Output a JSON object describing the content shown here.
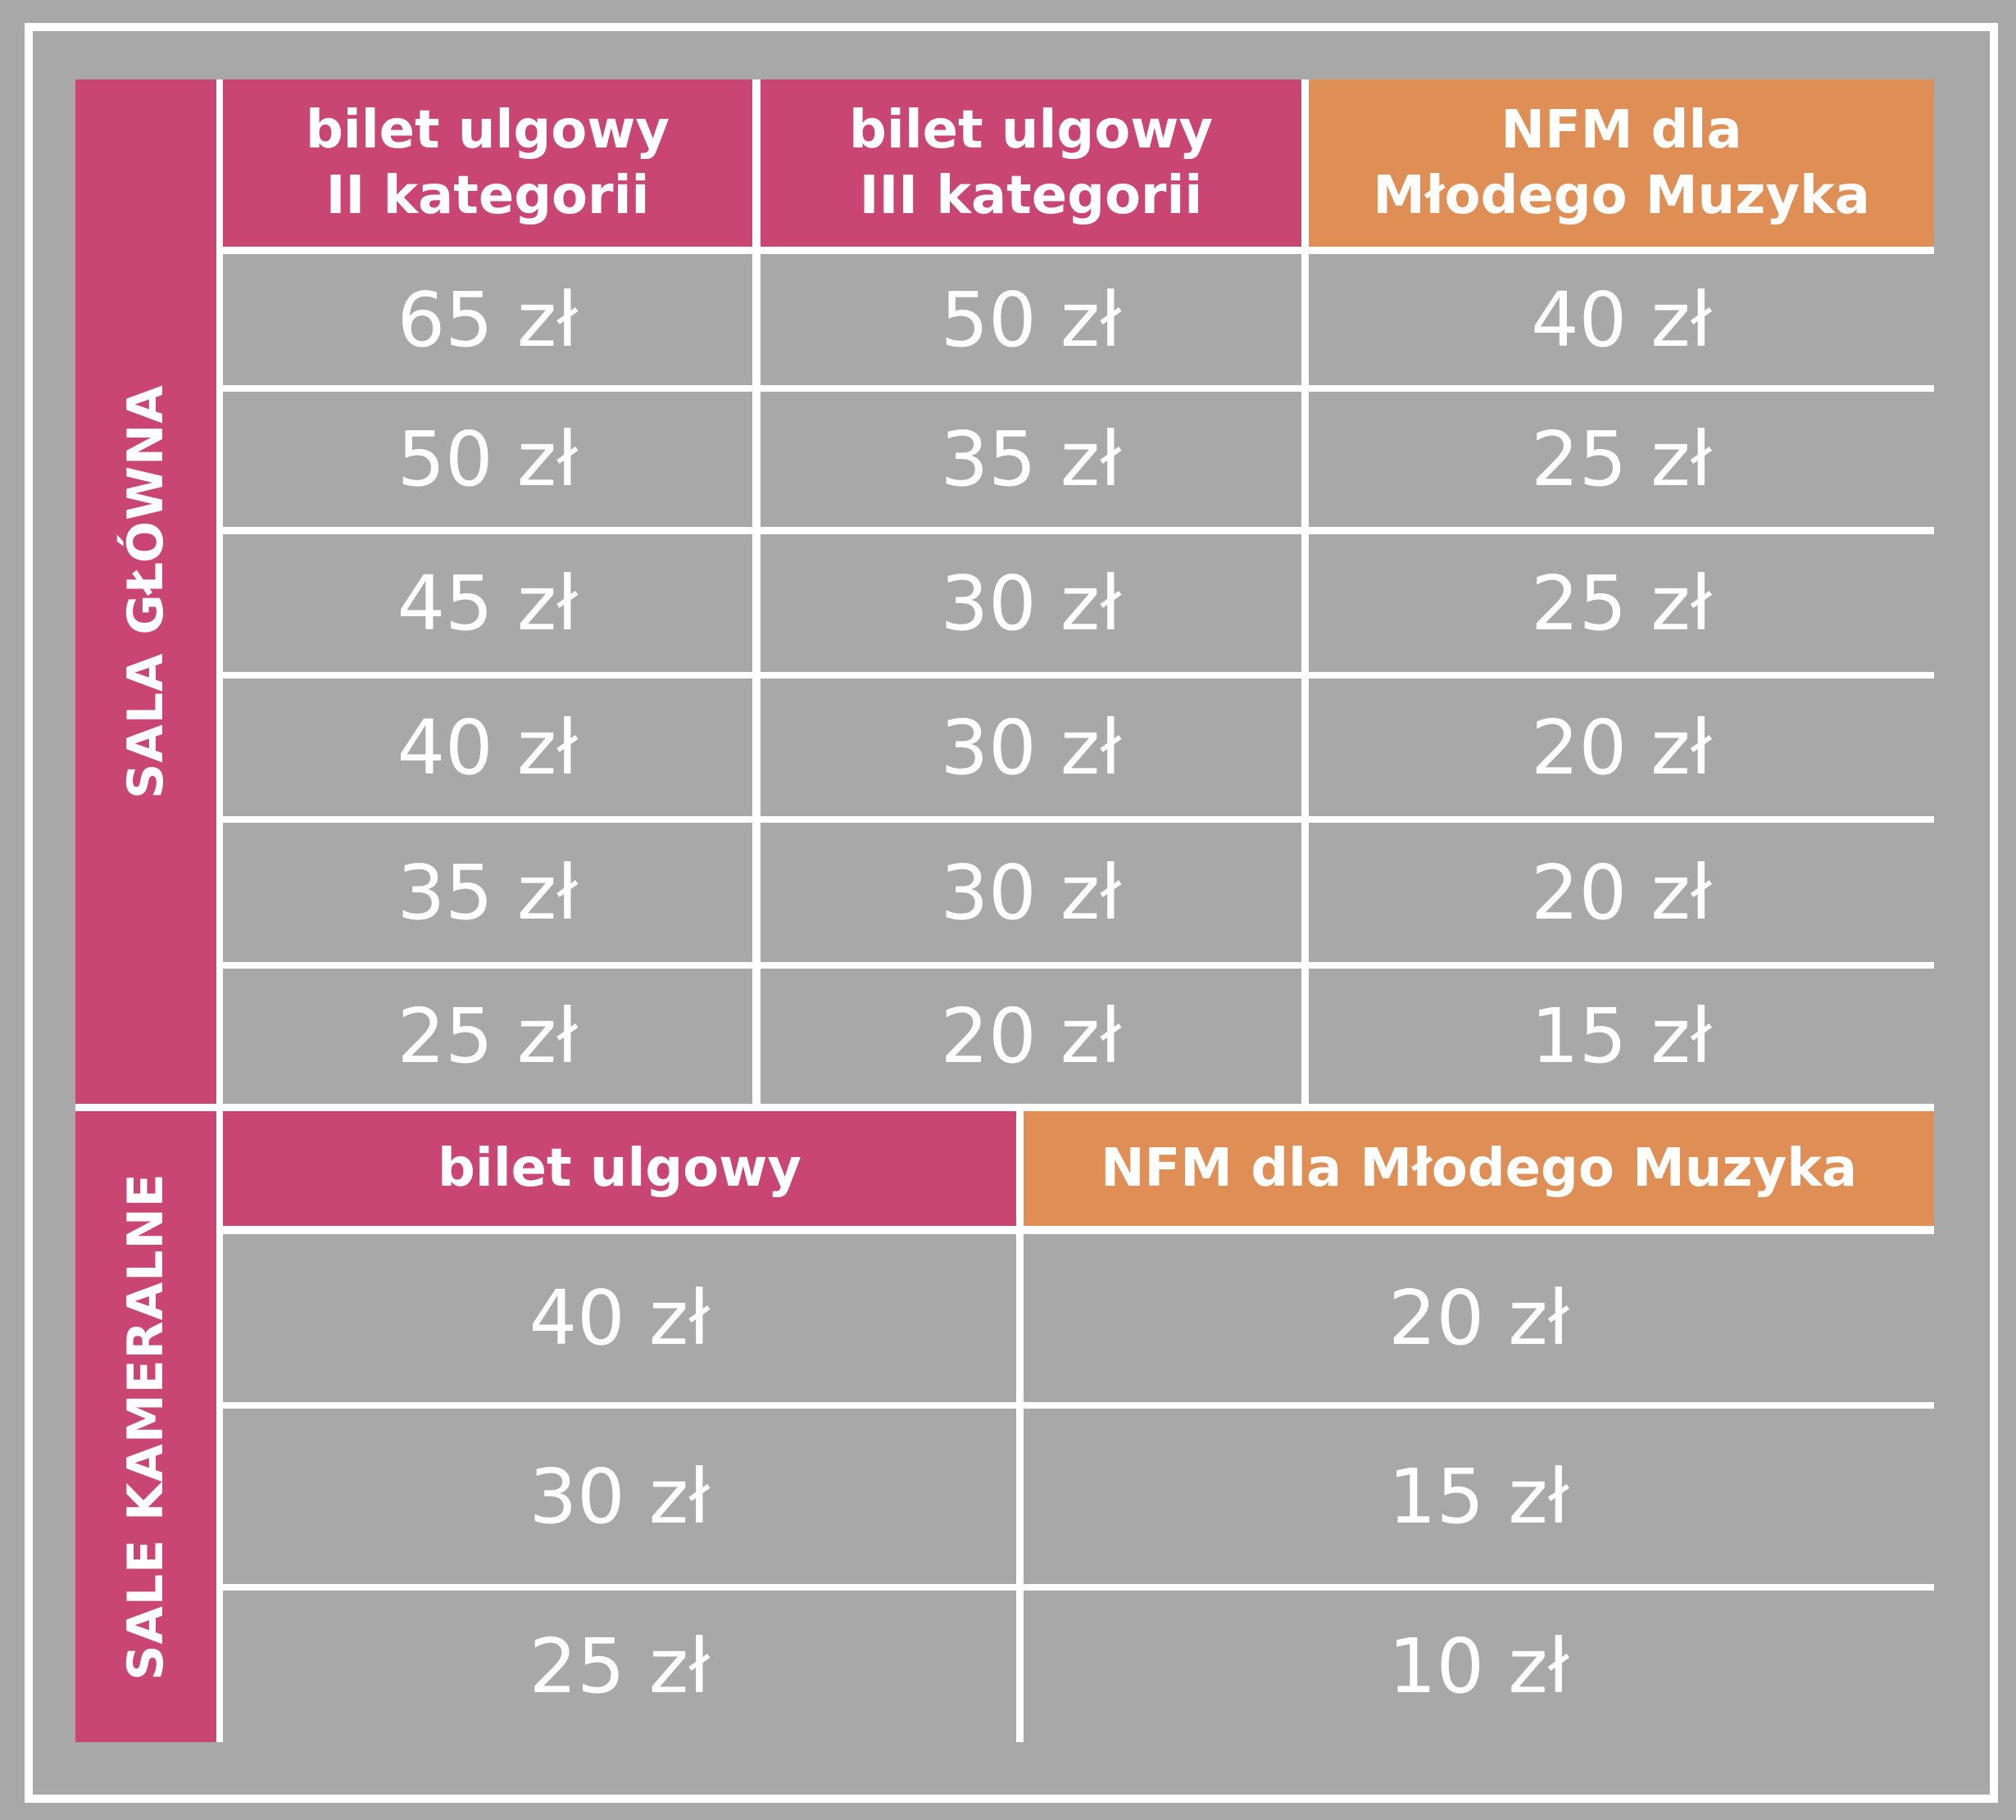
{
  "colors": {
    "pink": "#c94572",
    "orange": "#df8f55",
    "background": "#a8a8a8",
    "line": "#ffffff"
  },
  "main_hall": {
    "label": "SALA GŁÓWNA",
    "headers": [
      "bilet ulgowy\nII kategorii",
      "bilet ulgowy\nIII kategorii",
      "NFM dla\nMłodego Muzyka"
    ],
    "rows": [
      [
        "65 zł",
        "50 zł",
        "40 zł"
      ],
      [
        "50 zł",
        "35 zł",
        "25 zł"
      ],
      [
        "45 zł",
        "30 zł",
        "25 zł"
      ],
      [
        "40 zł",
        "30 zł",
        "20 zł"
      ],
      [
        "35 zł",
        "30 zł",
        "20 zł"
      ],
      [
        "25 zł",
        "20 zł",
        "15 zł"
      ]
    ]
  },
  "chamber_halls": {
    "label": "SALE KAMERALNE",
    "headers": [
      "bilet ulgowy",
      "NFM dla Młodego Muzyka"
    ],
    "rows": [
      [
        "40 zł",
        "20 zł"
      ],
      [
        "30 zł",
        "15 zł"
      ],
      [
        "25 zł",
        "10 zł"
      ]
    ]
  }
}
